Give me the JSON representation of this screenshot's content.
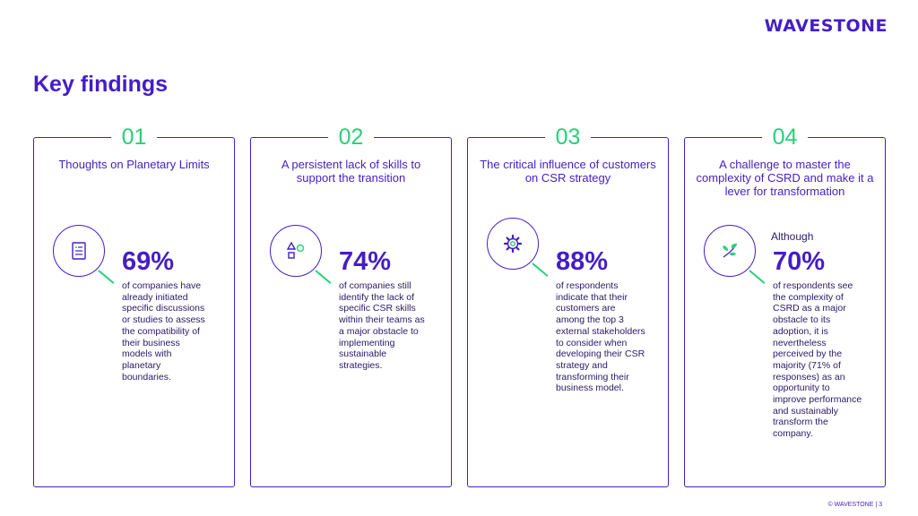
{
  "brand": {
    "logo": "WAVESTONE",
    "accent": "#451dc7",
    "green": "#27d07a"
  },
  "title": "Key findings",
  "cards": [
    {
      "number": "01",
      "heading": "Thoughts on Planetary Limits",
      "icon": "document-list-icon",
      "prefix": "",
      "percent": "69%",
      "description": "of companies have already initiated specific discussions or studies to assess the compatibility of their business models with planetary boundaries."
    },
    {
      "number": "02",
      "heading": "A persistent lack of skills to support the transition",
      "icon": "shapes-icon",
      "prefix": "",
      "percent": "74%",
      "description": "of companies still identify the lack of specific CSR skills within their teams as a major obstacle to implementing sustainable strategies."
    },
    {
      "number": "03",
      "heading": "The critical influence of customers on CSR strategy",
      "icon": "gear-icon",
      "prefix": "",
      "percent": "88%",
      "description": "of respondents indicate that their customers are among the top 3 external stakeholders to consider when developing their CSR strategy and transforming their business model."
    },
    {
      "number": "04",
      "heading": "A challenge to master the complexity of CSRD and make it a lever for transformation",
      "icon": "leaf-sprout-icon",
      "prefix": "Although",
      "percent": "70%",
      "description": "of respondents see the complexity of CSRD as a major obstacle to its adoption, it is nevertheless perceived by the majority (71% of responses) as an opportunity to improve performance and sustainably transform the company."
    }
  ],
  "footer": "© WAVESTONE | 3"
}
